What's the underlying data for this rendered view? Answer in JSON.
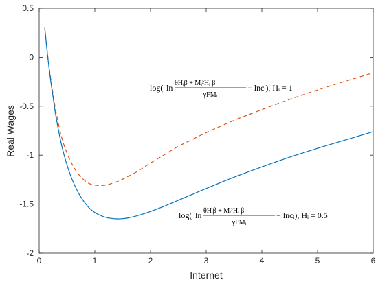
{
  "chart_data": {
    "type": "line",
    "title": "",
    "xlabel": "Internet",
    "ylabel": "Real Wages",
    "xlim": [
      0,
      6
    ],
    "ylim": [
      -2,
      0.5
    ],
    "grid": false,
    "legend": "none",
    "x_ticks": [
      "0",
      "1",
      "2",
      "3",
      "4",
      "5",
      "6"
    ],
    "y_ticks": [
      "0.5",
      "0",
      "-0.5",
      "-1",
      "-1.5",
      "-2"
    ],
    "series": [
      {
        "style": "dashed",
        "color": "#D95319",
        "x": [
          0.1,
          0.15,
          0.2,
          0.25,
          0.3,
          0.4,
          0.5,
          0.6,
          0.7,
          0.8,
          0.9,
          1.0,
          1.1,
          1.2,
          1.3,
          1.4,
          1.5,
          1.75,
          2.0,
          2.25,
          2.5,
          2.75,
          3.0,
          3.5,
          4.0,
          4.5,
          5.0,
          5.5,
          6.0
        ],
        "y": [
          0.3,
          0.03,
          -0.19,
          -0.38,
          -0.55,
          -0.81,
          -0.98,
          -1.1,
          -1.19,
          -1.25,
          -1.29,
          -1.305,
          -1.31,
          -1.305,
          -1.29,
          -1.27,
          -1.245,
          -1.17,
          -1.08,
          -0.995,
          -0.91,
          -0.84,
          -0.77,
          -0.645,
          -0.535,
          -0.43,
          -0.335,
          -0.245,
          -0.16
        ]
      },
      {
        "style": "solid",
        "color": "#0072BD",
        "x": [
          0.1,
          0.15,
          0.2,
          0.25,
          0.3,
          0.4,
          0.5,
          0.6,
          0.7,
          0.8,
          0.9,
          1.0,
          1.1,
          1.2,
          1.3,
          1.4,
          1.5,
          1.6,
          1.75,
          2.0,
          2.25,
          2.5,
          2.75,
          3.0,
          3.5,
          4.0,
          4.5,
          5.0,
          5.5,
          6.0
        ],
        "y": [
          0.3,
          0.02,
          -0.21,
          -0.41,
          -0.6,
          -0.89,
          -1.1,
          -1.26,
          -1.38,
          -1.47,
          -1.54,
          -1.585,
          -1.615,
          -1.635,
          -1.645,
          -1.65,
          -1.648,
          -1.64,
          -1.62,
          -1.575,
          -1.52,
          -1.46,
          -1.4,
          -1.34,
          -1.225,
          -1.12,
          -1.02,
          -0.93,
          -0.845,
          -0.76
        ]
      }
    ],
    "annotations": [
      {
        "series": 0,
        "prefix": "log(",
        "ln": "ln",
        "numerator": "θHᵢβ + Mᵢ²Hᵢ β",
        "denominator": "γFMᵢ",
        "suffix": " − lncᵢ), Hᵢ = 1"
      },
      {
        "series": 1,
        "prefix": "log(",
        "ln": "ln",
        "numerator": "θHᵢβ + Mᵢ²Hᵢ β",
        "denominator": "γFMᵢ",
        "suffix": " − lncᵢ), Hᵢ = 0.5"
      }
    ]
  }
}
